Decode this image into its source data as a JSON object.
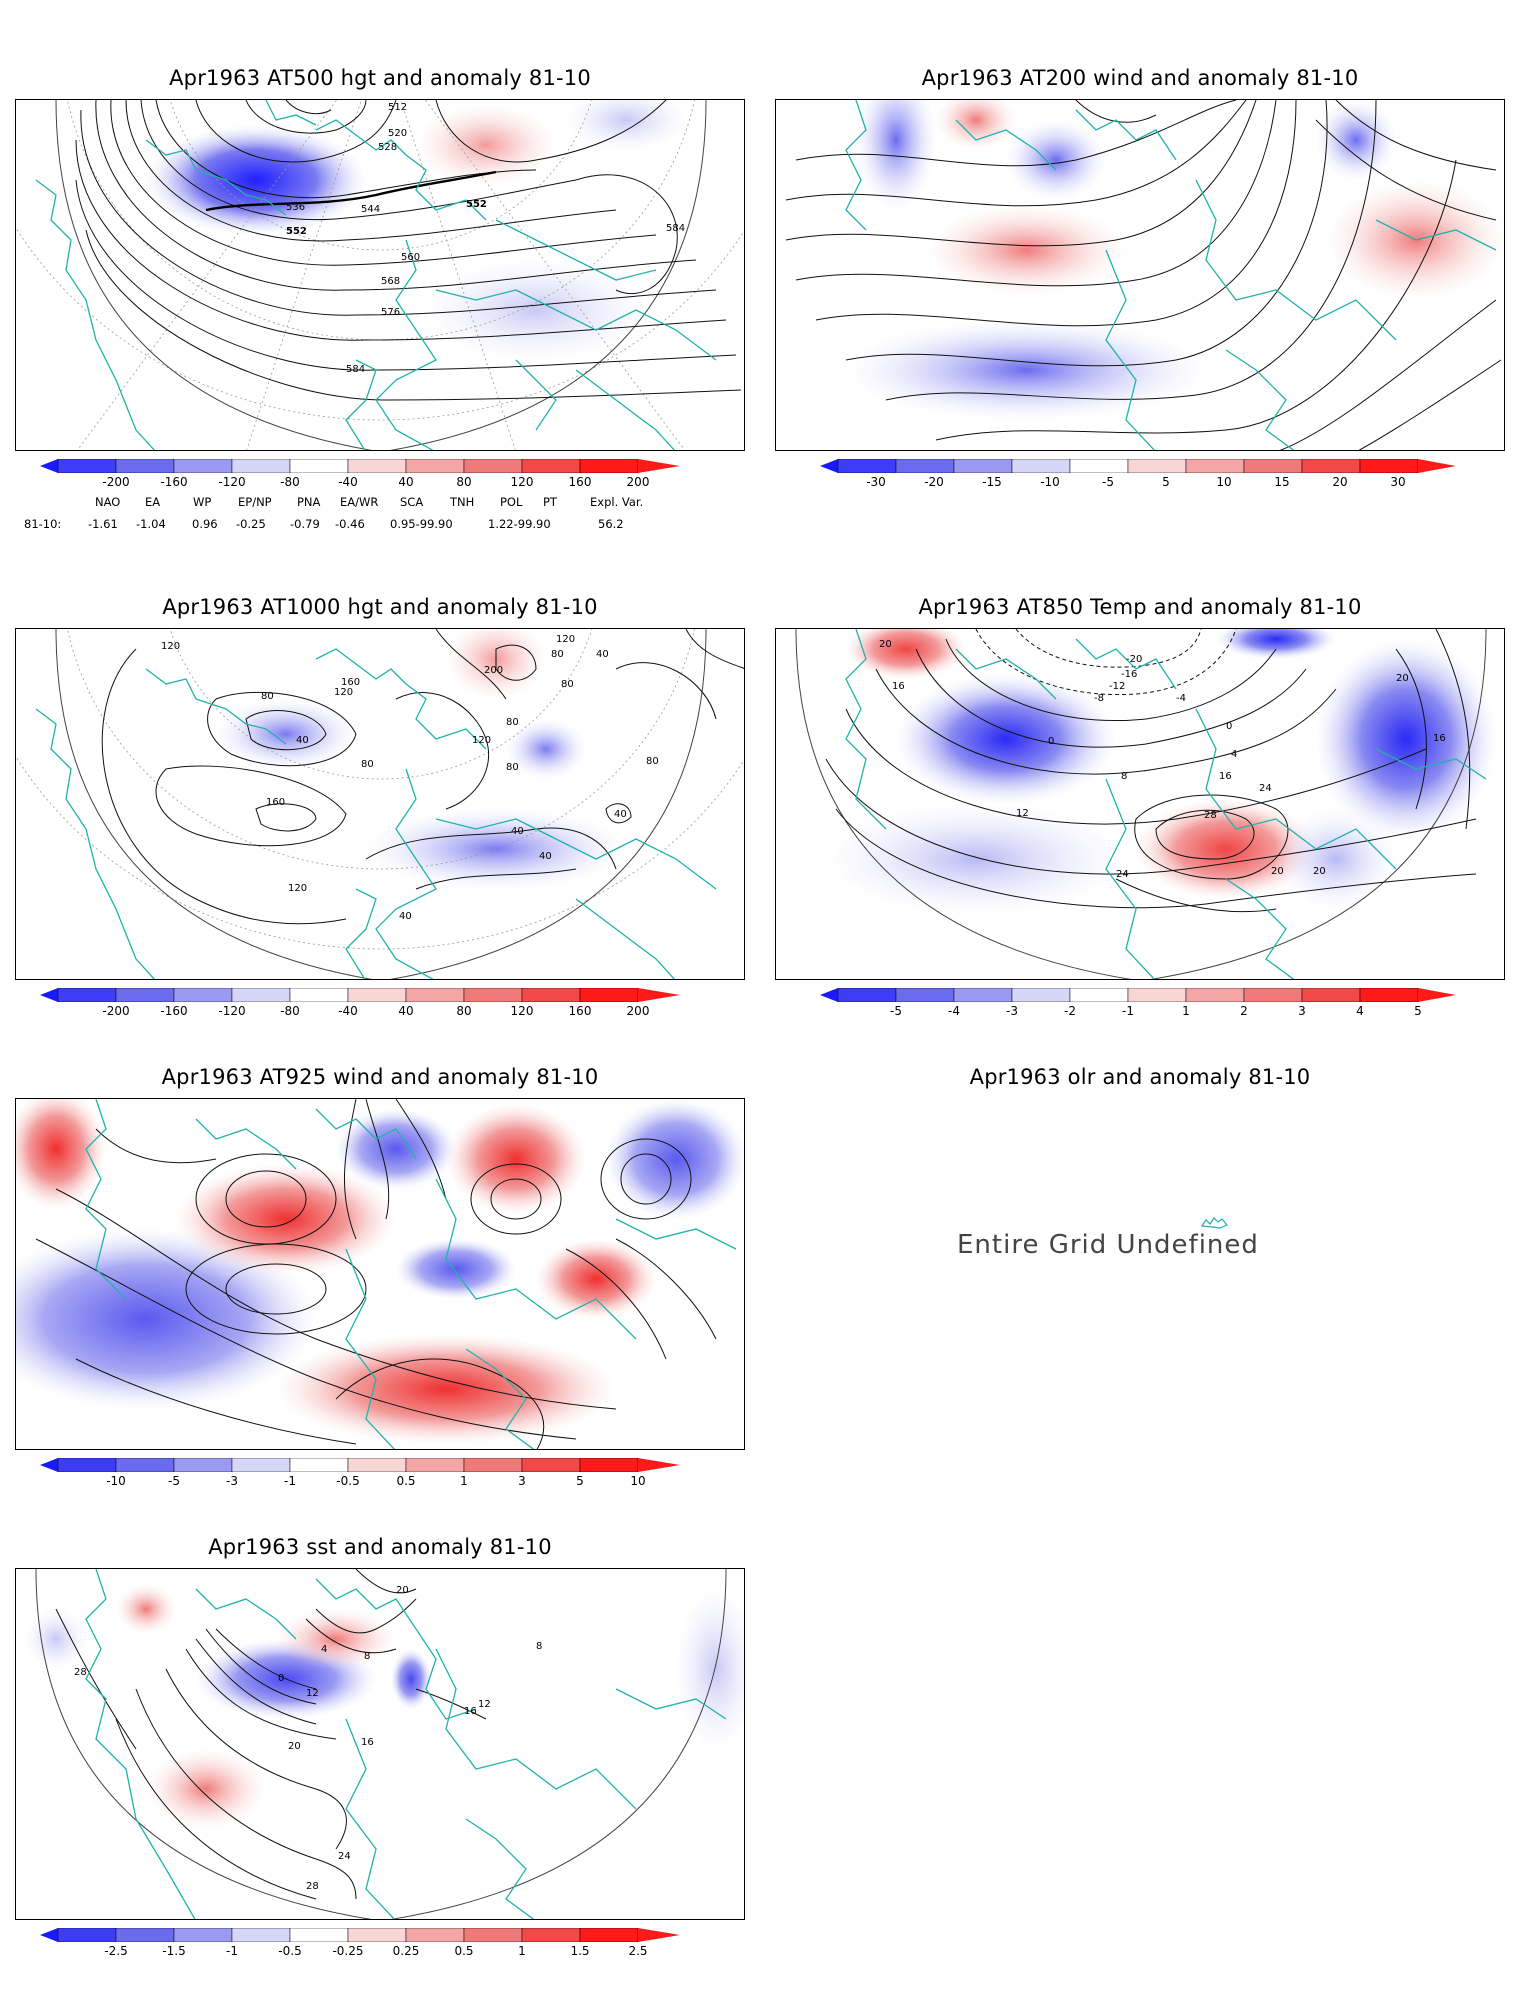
{
  "panels": [
    {
      "id": "at500",
      "title": "Apr1963 AT500 hgt and anomaly 81-10",
      "contour_labels": [
        "512",
        "520",
        "528",
        "536",
        "544",
        "552",
        "552",
        "560",
        "568",
        "576",
        "584",
        "584"
      ],
      "colorbar": [
        "-200",
        "-160",
        "-120",
        "-80",
        "-40",
        "40",
        "80",
        "120",
        "160",
        "200"
      ]
    },
    {
      "id": "at200",
      "title": "Apr1963 AT200 wind and anomaly 81-10",
      "colorbar": [
        "-30",
        "-20",
        "-15",
        "-10",
        "-5",
        "5",
        "10",
        "15",
        "20",
        "30"
      ]
    },
    {
      "id": "at1000",
      "title": "Apr1963 AT1000 hgt and anomaly 81-10",
      "contour_labels": [
        "120",
        "80",
        "120",
        "160",
        "200",
        "120",
        "80",
        "40",
        "80",
        "40",
        "80",
        "80",
        "160",
        "120",
        "40",
        "40",
        "80",
        "40",
        "80",
        "40",
        "120"
      ],
      "colorbar": [
        "-200",
        "-160",
        "-120",
        "-80",
        "-40",
        "40",
        "80",
        "120",
        "160",
        "200"
      ]
    },
    {
      "id": "at850",
      "title": "Apr1963 AT850 Temp and anomaly 81-10",
      "contour_labels": [
        "20",
        "16",
        "-20",
        "-16",
        "-12",
        "-8",
        "-4",
        "0",
        "0",
        "4",
        "8",
        "16",
        "24",
        "28",
        "12",
        "20",
        "20",
        "24",
        "16",
        "20"
      ],
      "colorbar": [
        "-5",
        "-4",
        "-3",
        "-2",
        "-1",
        "1",
        "2",
        "3",
        "4",
        "5"
      ]
    },
    {
      "id": "at925",
      "title": "Apr1963 AT925 wind and anomaly 81-10",
      "colorbar": [
        "-10",
        "-5",
        "-3",
        "-1",
        "-0.5",
        "0.5",
        "1",
        "3",
        "5",
        "10"
      ]
    },
    {
      "id": "olr",
      "title": "Apr1963 olr and anomaly 81-10",
      "message": "Entire Grid Undefined"
    },
    {
      "id": "sst",
      "title": "Apr1963 sst and anomaly 81-10",
      "contour_labels": [
        "28",
        "0",
        "4",
        "8",
        "12",
        "16",
        "20",
        "24",
        "28",
        "20",
        "16",
        "12",
        "8"
      ],
      "colorbar": [
        "-2.5",
        "-1.5",
        "-1",
        "-0.5",
        "-0.25",
        "0.25",
        "0.5",
        "1",
        "1.5",
        "2.5"
      ]
    }
  ],
  "teleconnections": {
    "headers": [
      "NAO",
      "EA",
      "WP",
      "EP/NP",
      "PNA",
      "EA/WR",
      "SCA",
      "TNH",
      "POL",
      "PT",
      "Expl. Var."
    ],
    "row_label": "81-10:",
    "values": [
      "-1.61",
      "-1.04",
      "0.96",
      "-0.25",
      "-0.79",
      "-0.46",
      "0.95-99.90",
      "1.22-99.90",
      "56.2"
    ]
  },
  "colors": {
    "coast": "#20b2aa",
    "neg_strong": "#1a1aff",
    "neg_mid": "#6b6bf0",
    "neg_light": "#d6d6f8",
    "pos_light": "#f9d6d6",
    "pos_mid": "#f07a7a",
    "pos_strong": "#ff1a1a"
  }
}
